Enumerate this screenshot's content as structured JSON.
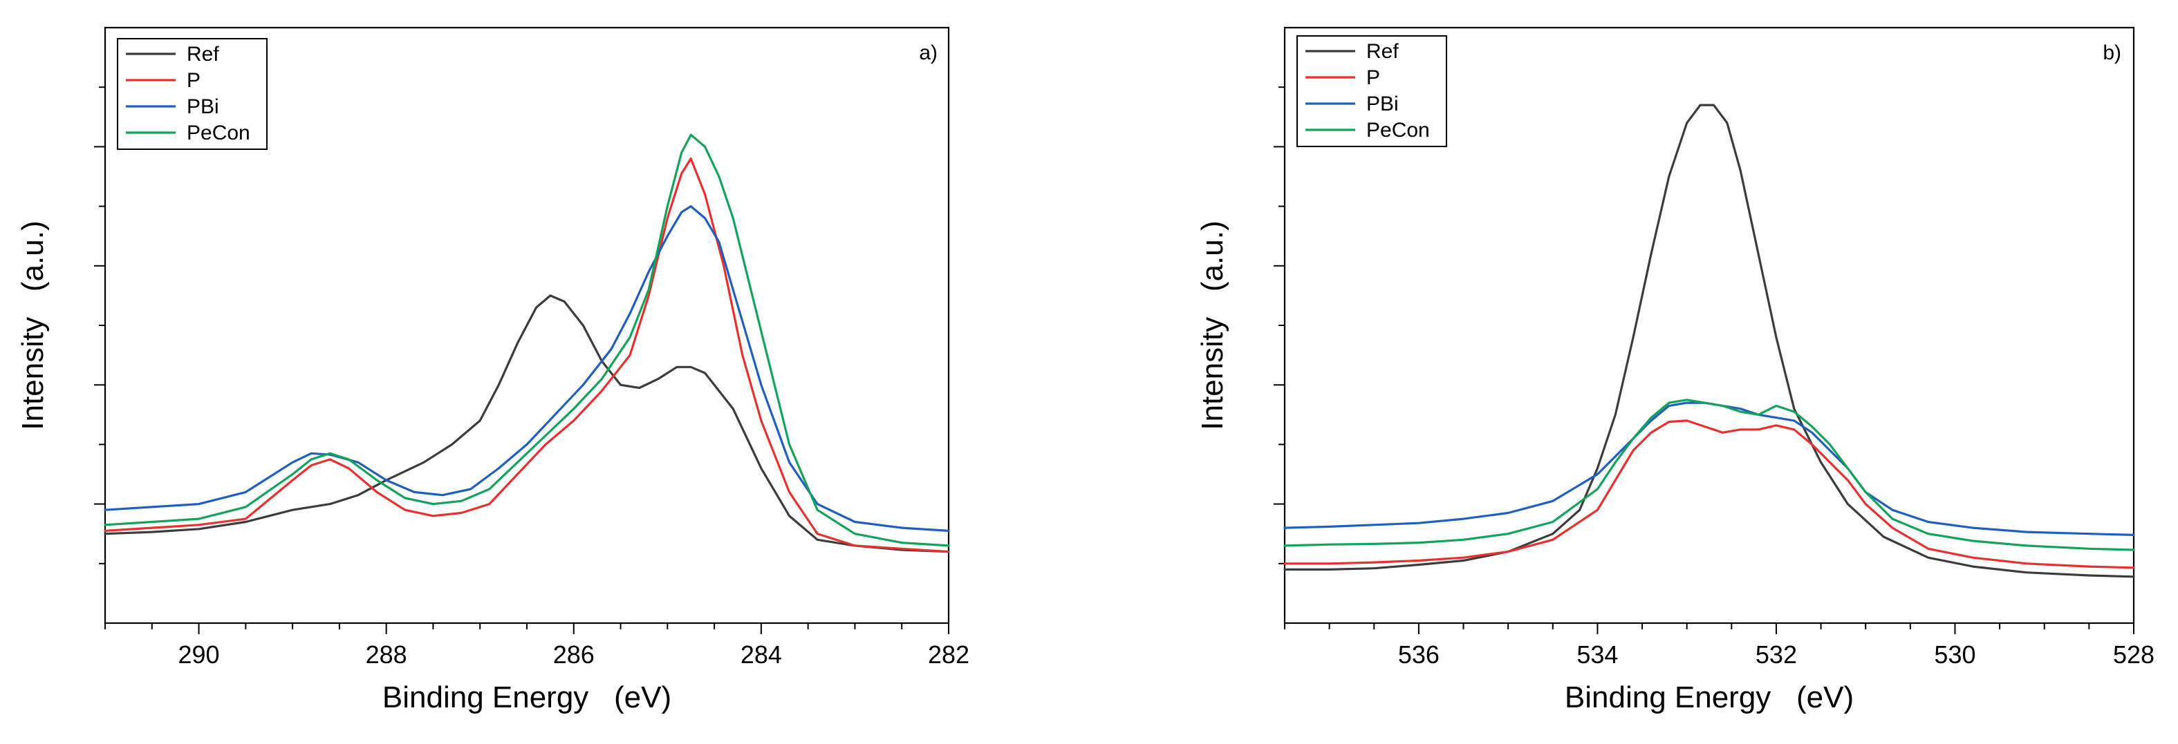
{
  "chart_data": [
    {
      "type": "line",
      "panel_label": "a)",
      "xlabel": "Binding Energy   (eV)",
      "ylabel": "Intensity   (a.u.)",
      "xlim": [
        291,
        282
      ],
      "ylim": [
        0,
        100
      ],
      "x_ticks": [
        290,
        288,
        286,
        284,
        282
      ],
      "x_tick_labels": [
        "290",
        "288",
        "286",
        "284",
        "282"
      ],
      "y_tick_labels_shown": false,
      "legend_position": "top-left",
      "series": [
        {
          "name": "Ref",
          "color": "#3c3c3c",
          "points": [
            [
              291,
              15
            ],
            [
              290.5,
              15.3
            ],
            [
              290,
              15.8
            ],
            [
              289.5,
              17
            ],
            [
              289,
              19
            ],
            [
              288.6,
              20
            ],
            [
              288.3,
              21.5
            ],
            [
              288,
              24
            ],
            [
              287.6,
              27
            ],
            [
              287.3,
              30
            ],
            [
              287,
              34
            ],
            [
              286.8,
              40
            ],
            [
              286.6,
              47
            ],
            [
              286.4,
              53
            ],
            [
              286.25,
              55
            ],
            [
              286.1,
              54
            ],
            [
              285.9,
              50
            ],
            [
              285.7,
              44
            ],
            [
              285.5,
              40
            ],
            [
              285.3,
              39.5
            ],
            [
              285.1,
              41
            ],
            [
              284.9,
              43
            ],
            [
              284.75,
              43
            ],
            [
              284.6,
              42
            ],
            [
              284.3,
              36
            ],
            [
              284,
              26
            ],
            [
              283.7,
              18
            ],
            [
              283.4,
              14
            ],
            [
              283,
              13
            ],
            [
              282.5,
              12.3
            ],
            [
              282,
              12
            ]
          ]
        },
        {
          "name": "P",
          "color": "#e6312e",
          "points": [
            [
              291,
              15.5
            ],
            [
              290.5,
              16
            ],
            [
              290,
              16.5
            ],
            [
              289.5,
              17.5
            ],
            [
              289,
              24
            ],
            [
              288.8,
              26.5
            ],
            [
              288.6,
              27.5
            ],
            [
              288.4,
              26
            ],
            [
              288.1,
              22
            ],
            [
              287.8,
              19
            ],
            [
              287.5,
              18
            ],
            [
              287.2,
              18.5
            ],
            [
              286.9,
              20
            ],
            [
              286.6,
              25
            ],
            [
              286.3,
              30
            ],
            [
              286,
              34
            ],
            [
              285.7,
              39
            ],
            [
              285.4,
              45
            ],
            [
              285.2,
              55
            ],
            [
              285,
              68
            ],
            [
              284.85,
              75.5
            ],
            [
              284.75,
              78
            ],
            [
              284.6,
              72
            ],
            [
              284.4,
              60
            ],
            [
              284.2,
              45
            ],
            [
              284,
              34
            ],
            [
              283.7,
              22
            ],
            [
              283.4,
              15
            ],
            [
              283,
              13
            ],
            [
              282.5,
              12.5
            ],
            [
              282,
              12
            ]
          ]
        },
        {
          "name": "PBi",
          "color": "#1f5fbf",
          "points": [
            [
              291,
              19
            ],
            [
              290.5,
              19.5
            ],
            [
              290,
              20
            ],
            [
              289.5,
              22
            ],
            [
              289,
              27
            ],
            [
              288.8,
              28.5
            ],
            [
              288.6,
              28.3
            ],
            [
              288.3,
              27
            ],
            [
              288,
              24
            ],
            [
              287.7,
              22
            ],
            [
              287.4,
              21.5
            ],
            [
              287.1,
              22.5
            ],
            [
              286.8,
              26
            ],
            [
              286.5,
              30
            ],
            [
              286.2,
              35
            ],
            [
              285.9,
              40
            ],
            [
              285.6,
              46
            ],
            [
              285.4,
              52
            ],
            [
              285.2,
              59
            ],
            [
              285,
              65
            ],
            [
              284.85,
              69
            ],
            [
              284.75,
              70
            ],
            [
              284.6,
              68
            ],
            [
              284.45,
              64
            ],
            [
              284.3,
              56
            ],
            [
              284,
              40
            ],
            [
              283.7,
              27
            ],
            [
              283.4,
              20
            ],
            [
              283,
              17
            ],
            [
              282.5,
              16
            ],
            [
              282,
              15.5
            ]
          ]
        },
        {
          "name": "PeCon",
          "color": "#13a35a",
          "points": [
            [
              291,
              16.5
            ],
            [
              290.5,
              17
            ],
            [
              290,
              17.5
            ],
            [
              289.5,
              19.5
            ],
            [
              289,
              25
            ],
            [
              288.8,
              27.5
            ],
            [
              288.6,
              28.5
            ],
            [
              288.4,
              27.5
            ],
            [
              288.1,
              24
            ],
            [
              287.8,
              21
            ],
            [
              287.5,
              20
            ],
            [
              287.2,
              20.5
            ],
            [
              286.9,
              22.5
            ],
            [
              286.6,
              27
            ],
            [
              286.3,
              31.5
            ],
            [
              286,
              36
            ],
            [
              285.7,
              41
            ],
            [
              285.4,
              48
            ],
            [
              285.2,
              56
            ],
            [
              285,
              70
            ],
            [
              284.85,
              79
            ],
            [
              284.75,
              82
            ],
            [
              284.6,
              80
            ],
            [
              284.45,
              75
            ],
            [
              284.3,
              68
            ],
            [
              284,
              49
            ],
            [
              283.7,
              30
            ],
            [
              283.4,
              19
            ],
            [
              283,
              15
            ],
            [
              282.5,
              13.5
            ],
            [
              282,
              13
            ]
          ]
        }
      ]
    },
    {
      "type": "line",
      "panel_label": "b)",
      "xlabel": "Binding Energy   (eV)",
      "ylabel": "Intensity   (a.u.)",
      "xlim": [
        537.5,
        528
      ],
      "ylim": [
        0,
        100
      ],
      "x_ticks": [
        536,
        534,
        532,
        530,
        528
      ],
      "x_tick_labels": [
        "536",
        "534",
        "532",
        "530",
        "528"
      ],
      "y_tick_labels_shown": false,
      "legend_position": "top-left",
      "series": [
        {
          "name": "Ref",
          "color": "#3c3c3c",
          "points": [
            [
              537.5,
              9
            ],
            [
              537,
              9
            ],
            [
              536.5,
              9.2
            ],
            [
              536,
              9.8
            ],
            [
              535.5,
              10.5
            ],
            [
              535,
              12
            ],
            [
              534.5,
              15
            ],
            [
              534.2,
              19
            ],
            [
              534,
              26
            ],
            [
              533.8,
              35
            ],
            [
              533.6,
              48
            ],
            [
              533.4,
              62
            ],
            [
              533.2,
              75
            ],
            [
              533,
              84
            ],
            [
              532.85,
              87
            ],
            [
              532.7,
              87
            ],
            [
              532.55,
              84
            ],
            [
              532.4,
              76
            ],
            [
              532.2,
              62
            ],
            [
              532,
              48
            ],
            [
              531.8,
              36
            ],
            [
              531.5,
              27
            ],
            [
              531.2,
              20
            ],
            [
              530.8,
              14.5
            ],
            [
              530.3,
              11
            ],
            [
              529.8,
              9.5
            ],
            [
              529.2,
              8.5
            ],
            [
              528.5,
              8
            ],
            [
              528,
              7.8
            ]
          ]
        },
        {
          "name": "P",
          "color": "#e6312e",
          "points": [
            [
              537.5,
              10
            ],
            [
              537,
              10
            ],
            [
              536.5,
              10.2
            ],
            [
              536,
              10.5
            ],
            [
              535.5,
              11
            ],
            [
              535,
              12
            ],
            [
              534.5,
              14
            ],
            [
              534,
              19
            ],
            [
              533.8,
              24
            ],
            [
              533.6,
              29
            ],
            [
              533.4,
              32
            ],
            [
              533.2,
              33.8
            ],
            [
              533,
              34
            ],
            [
              532.8,
              33
            ],
            [
              532.6,
              32
            ],
            [
              532.4,
              32.5
            ],
            [
              532.2,
              32.5
            ],
            [
              532,
              33.2
            ],
            [
              531.8,
              32.5
            ],
            [
              531.6,
              30
            ],
            [
              531.4,
              27
            ],
            [
              531.2,
              24
            ],
            [
              531,
              20
            ],
            [
              530.7,
              16
            ],
            [
              530.3,
              12.5
            ],
            [
              529.8,
              11
            ],
            [
              529.2,
              10
            ],
            [
              528.5,
              9.5
            ],
            [
              528,
              9.3
            ]
          ]
        },
        {
          "name": "PBi",
          "color": "#1f5fbf",
          "points": [
            [
              537.5,
              16
            ],
            [
              537,
              16.2
            ],
            [
              536.5,
              16.5
            ],
            [
              536,
              16.8
            ],
            [
              535.5,
              17.5
            ],
            [
              535,
              18.5
            ],
            [
              534.5,
              20.5
            ],
            [
              534,
              25
            ],
            [
              533.8,
              28
            ],
            [
              533.6,
              31
            ],
            [
              533.4,
              34
            ],
            [
              533.2,
              36.5
            ],
            [
              533,
              37
            ],
            [
              532.8,
              37
            ],
            [
              532.6,
              36.5
            ],
            [
              532.4,
              36
            ],
            [
              532.2,
              35
            ],
            [
              532,
              34.5
            ],
            [
              531.8,
              34
            ],
            [
              531.6,
              32
            ],
            [
              531.4,
              29
            ],
            [
              531.2,
              26
            ],
            [
              531,
              22
            ],
            [
              530.7,
              19
            ],
            [
              530.3,
              17
            ],
            [
              529.8,
              16
            ],
            [
              529.2,
              15.3
            ],
            [
              528.5,
              15
            ],
            [
              528,
              14.8
            ]
          ]
        },
        {
          "name": "PeCon",
          "color": "#13a35a",
          "points": [
            [
              537.5,
              13
            ],
            [
              537,
              13.2
            ],
            [
              536.5,
              13.3
            ],
            [
              536,
              13.5
            ],
            [
              535.5,
              14
            ],
            [
              535,
              15
            ],
            [
              534.5,
              17
            ],
            [
              534,
              22.5
            ],
            [
              533.8,
              27
            ],
            [
              533.6,
              31
            ],
            [
              533.4,
              34.5
            ],
            [
              533.2,
              37
            ],
            [
              533,
              37.5
            ],
            [
              532.8,
              37
            ],
            [
              532.6,
              36.5
            ],
            [
              532.4,
              35.5
            ],
            [
              532.2,
              35
            ],
            [
              532,
              36.5
            ],
            [
              531.8,
              35.5
            ],
            [
              531.6,
              33
            ],
            [
              531.4,
              30
            ],
            [
              531.2,
              26
            ],
            [
              531,
              22
            ],
            [
              530.7,
              17.5
            ],
            [
              530.3,
              15
            ],
            [
              529.8,
              13.8
            ],
            [
              529.2,
              13
            ],
            [
              528.5,
              12.5
            ],
            [
              528,
              12.3
            ]
          ]
        }
      ]
    }
  ]
}
